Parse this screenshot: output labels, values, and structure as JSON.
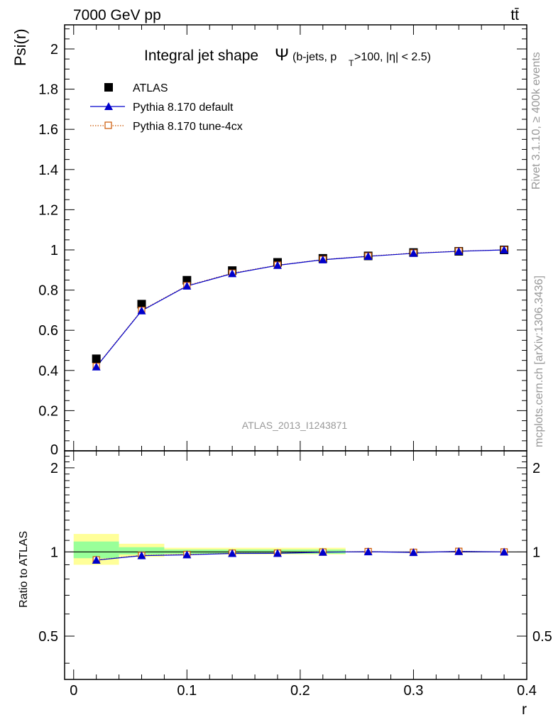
{
  "header": {
    "energy_label": "7000 GeV pp",
    "process_label": "tt̄"
  },
  "side_labels": {
    "rivet": "Rivet 3.1.10, ≥ 400k events",
    "mcplots": "mcplots.cern.ch [arXiv:1306.3436]"
  },
  "title": {
    "main": "Integral jet shape",
    "symbol": "Ψ",
    "sub_prefix": "(b-jets, p",
    "sub_subscript": "T",
    "sub_suffix": ">100, |η| < 2.5)"
  },
  "analysis_id": "ATLAS_2013_I1243871",
  "legend": [
    {
      "label": "ATLAS",
      "marker": "square",
      "color": "#000000"
    },
    {
      "label": "Pythia 8.170 default",
      "marker": "triangle",
      "color": "#0000cc"
    },
    {
      "label": "Pythia 8.170 tune-4cx",
      "marker": "open-square",
      "color": "#cc5500"
    }
  ],
  "axes": {
    "main_ylabel": "Psi(r)",
    "ratio_ylabel": "Ratio to ATLAS",
    "xlabel": "r",
    "main_yticks": [
      "0",
      "0.2",
      "0.4",
      "0.6",
      "0.8",
      "1",
      "1.2",
      "1.4",
      "1.6",
      "1.8",
      "2"
    ],
    "ratio_yticks": [
      "0.5",
      "1",
      "2"
    ],
    "xticks": [
      "0",
      "0.1",
      "0.2",
      "0.3",
      "0.4"
    ]
  },
  "chart_data": [
    {
      "type": "scatter",
      "panel": "main",
      "title": "Integral jet shape Ψ (b-jets, pT>100, |η| < 2.5)",
      "xlabel": "r",
      "ylabel": "Psi(r)",
      "xlim": [
        -0.008,
        0.4
      ],
      "ylim": [
        0,
        2.12
      ],
      "legend_position": "top-left",
      "x": [
        0.02,
        0.06,
        0.1,
        0.14,
        0.18,
        0.22,
        0.26,
        0.3,
        0.34,
        0.38
      ],
      "series": [
        {
          "name": "ATLAS",
          "values": [
            0.458,
            0.73,
            0.849,
            0.897,
            0.938,
            0.958,
            0.97,
            0.987,
            0.993,
            1.0
          ]
        },
        {
          "name": "Pythia 8.170 default",
          "values": [
            0.418,
            0.697,
            0.82,
            0.882,
            0.923,
            0.951,
            0.968,
            0.983,
            0.993,
            1.0
          ]
        },
        {
          "name": "Pythia 8.170 tune-4cx",
          "values": [
            0.42,
            0.699,
            0.822,
            0.884,
            0.924,
            0.952,
            0.969,
            0.984,
            0.994,
            1.0
          ]
        }
      ]
    },
    {
      "type": "line",
      "panel": "ratio",
      "ylabel": "Ratio to ATLAS",
      "xlabel": "r",
      "xlim": [
        -0.008,
        0.4
      ],
      "ylim": [
        0.35,
        2.3
      ],
      "scale": "log",
      "x": [
        0.02,
        0.06,
        0.1,
        0.14,
        0.18,
        0.22,
        0.26,
        0.3,
        0.34,
        0.38
      ],
      "bands": [
        {
          "name": "ATLAS uncertainty (total)",
          "color": "#ffff99",
          "bins": [
            [
              0.0,
              0.04,
              0.9,
              1.16
            ],
            [
              0.04,
              0.08,
              0.96,
              1.07
            ],
            [
              0.08,
              0.24,
              0.98,
              1.035
            ]
          ]
        },
        {
          "name": "ATLAS uncertainty (stat)",
          "color": "#99ff99",
          "bins": [
            [
              0.0,
              0.04,
              0.95,
              1.09
            ],
            [
              0.04,
              0.08,
              0.98,
              1.04
            ],
            [
              0.08,
              0.24,
              0.985,
              1.02
            ]
          ]
        }
      ],
      "series": [
        {
          "name": "Pythia 8.170 default",
          "values": [
            0.935,
            0.97,
            0.977,
            0.988,
            0.989,
            0.998,
            1.002,
            0.996,
            1.004,
            1.0
          ]
        },
        {
          "name": "Pythia 8.170 tune-4cx",
          "values": [
            0.937,
            0.972,
            0.979,
            0.99,
            0.99,
            0.999,
            1.003,
            0.997,
            1.005,
            1.0
          ]
        }
      ]
    }
  ]
}
